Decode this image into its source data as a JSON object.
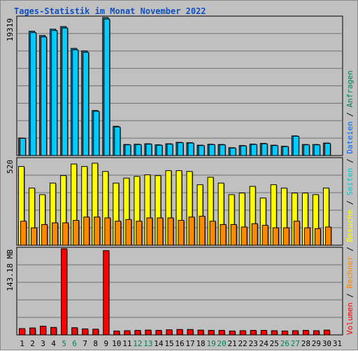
{
  "chart_data": {
    "type": "bar",
    "title": "Tages-Statistik im Monat November 2022",
    "categories": [
      "1",
      "2",
      "3",
      "4",
      "5",
      "6",
      "7",
      "8",
      "9",
      "10",
      "11",
      "12",
      "13",
      "14",
      "15",
      "16",
      "17",
      "18",
      "19",
      "20",
      "21",
      "22",
      "23",
      "24",
      "25",
      "26",
      "27",
      "28",
      "29",
      "30",
      "31"
    ],
    "weekend_days": [
      "5",
      "6",
      "12",
      "13",
      "19",
      "20",
      "26",
      "27"
    ],
    "colors": {
      "background": "#c0c0c0",
      "anfragen": "#00ccff",
      "dateien": "#0066ff",
      "seiten": "#00cccc",
      "besuche": "#ffff00",
      "rechner": "#ff8800",
      "volumen": "#ff0000",
      "weekend_label": "#00805a",
      "title": "#1050c0"
    },
    "panels": [
      {
        "id": "requests",
        "max_label": "19319",
        "ylim": [
          0,
          19319
        ],
        "series": [
          {
            "values": [
              2450,
              17400,
              16800,
              17700,
              18050,
              15000,
              14650,
              6300,
              19319,
              4100,
              1550,
              1580,
              1650,
              1500,
              1650,
              1850,
              1800,
              1450,
              1580,
              1550,
              1100,
              1400,
              1600,
              1700,
              1450,
              1300,
              2750,
              1550,
              1550,
              1750,
              null
            ]
          },
          {
            "values": [
              2400,
              17200,
              16600,
              17500,
              17850,
              14800,
              14450,
              6200,
              19100,
              4000,
              1500,
              1530,
              1600,
              1450,
              1600,
              1800,
              1750,
              1400,
              1530,
              1500,
              1050,
              1350,
              1550,
              1650,
              1400,
              1250,
              2700,
              1500,
              1500,
              1700,
              null
            ]
          }
        ]
      },
      {
        "id": "visits",
        "max_label": "520",
        "ylim": [
          0,
          520
        ],
        "series": [
          {
            "values": [
              475,
              345,
              305,
              375,
              420,
              490,
              475,
              495,
              445,
              375,
              405,
              415,
              425,
              420,
              450,
              450,
              445,
              365,
              410,
              375,
              305,
              315,
              355,
              285,
              365,
              345,
              315,
              315,
              305,
              345,
              null
            ]
          },
          {
            "values": [
              145,
              105,
              125,
              135,
              135,
              150,
              170,
              170,
              165,
              145,
              155,
              145,
              165,
              165,
              165,
              150,
              170,
              175,
              145,
              125,
              125,
              110,
              130,
              120,
              105,
              105,
              145,
              105,
              100,
              110,
              null
            ]
          }
        ]
      },
      {
        "id": "volume",
        "max_label": "143.18 MB",
        "ylim": [
          0,
          143.18
        ],
        "series": [
          {
            "values": [
              10.5,
              11.5,
              14.5,
              12.5,
              143.18,
              12,
              10,
              9.5,
              140,
              6.5,
              7,
              7.5,
              8,
              7.5,
              8.5,
              9,
              9,
              8,
              7.5,
              7.5,
              6.5,
              7,
              7.5,
              7.5,
              7,
              6.5,
              7,
              7.5,
              7,
              8,
              null
            ]
          }
        ]
      }
    ],
    "legend": [
      {
        "text": "Volumen",
        "color": "#ff0000"
      },
      {
        "text": "Rechner",
        "color": "#ff8800"
      },
      {
        "text": "Besuche",
        "color": "#ffff00"
      },
      {
        "text": "Seiten",
        "color": "#00cccc"
      },
      {
        "text": "Dateien",
        "color": "#0066ff"
      },
      {
        "text": "Anfragen",
        "color": "#00805a"
      }
    ],
    "legend_separator": " / "
  }
}
